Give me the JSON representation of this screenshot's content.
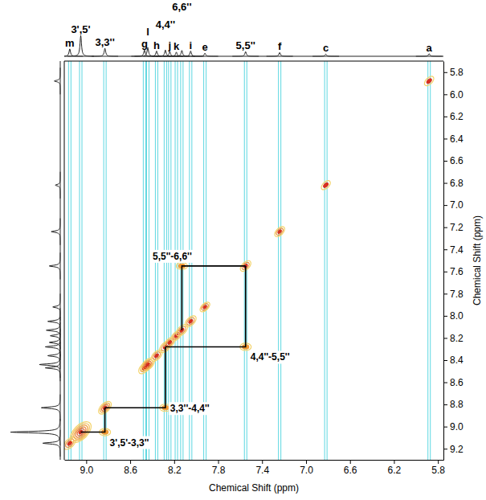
{
  "chart_data": {
    "type": "nmr_2d",
    "x_label": "Chemical Shift (ppm)",
    "y_label": "Chemical Shift (ppm)",
    "xlim": [
      9.2,
      5.75
    ],
    "ylim": [
      5.7,
      9.3
    ],
    "xticks": [
      {
        "value": 9,
        "label": "9.0"
      },
      8.6,
      8.2,
      7.8,
      7.4,
      {
        "value": 7,
        "label": "7.0"
      },
      6.6,
      6.2,
      5.8
    ],
    "yticks": [
      5.8,
      {
        "value": 6,
        "label": "6.0"
      },
      6.2,
      6.4,
      6.6,
      6.8,
      {
        "value": 7,
        "label": "7.0"
      },
      7.2,
      7.4,
      7.6,
      7.8,
      {
        "value": 8,
        "label": "8.0"
      },
      8.2,
      8.4,
      8.6,
      8.8,
      {
        "value": 9,
        "label": "9.0"
      },
      9.2
    ],
    "peaks": [
      {
        "label": "m",
        "shift": 9.15,
        "intensity": 35
      },
      {
        "label": "3',5'",
        "shift": 9.05,
        "intensity": 100
      },
      {
        "label": "3,3''",
        "shift": 8.83,
        "intensity": 38
      },
      {
        "label": "g",
        "shift": 8.47,
        "intensity": 30
      },
      {
        "label": "l",
        "shift": 8.44,
        "intensity": 42
      },
      {
        "label": "h",
        "shift": 8.36,
        "intensity": 25
      },
      {
        "label": "4,4''",
        "shift": 8.28,
        "intensity": 30
      },
      {
        "label": "j",
        "shift": 8.24,
        "intensity": 22
      },
      {
        "label": "k",
        "shift": 8.18,
        "intensity": 20
      },
      {
        "label": "6,6''",
        "shift": 8.13,
        "intensity": 28
      },
      {
        "label": "i",
        "shift": 8.05,
        "intensity": 25
      },
      {
        "label": "e",
        "shift": 7.92,
        "intensity": 15
      },
      {
        "label": "5,5''",
        "shift": 7.55,
        "intensity": 22
      },
      {
        "label": "f",
        "shift": 7.24,
        "intensity": 18
      },
      {
        "label": "c",
        "shift": 6.82,
        "intensity": 10
      },
      {
        "label": "a",
        "shift": 5.88,
        "intensity": 12
      }
    ],
    "correlations": [
      {
        "label": "3',5'-3,3''",
        "x": 8.83,
        "y": 9.05
      },
      {
        "label": "3,3''-4,4''",
        "x": 8.28,
        "y": 8.83
      },
      {
        "label": "4,4''-5,5''",
        "x": 7.55,
        "y": 8.28
      },
      {
        "label": "5,5''-6,6''",
        "x": 8.13,
        "y": 7.55
      }
    ]
  }
}
